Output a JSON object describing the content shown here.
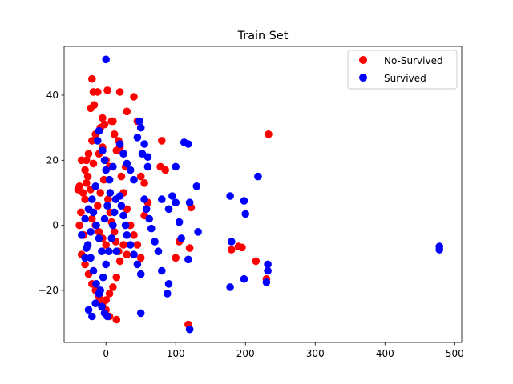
{
  "chart_data": {
    "type": "scatter",
    "title": "Train Set",
    "xlabel": "",
    "ylabel": "",
    "xlim": [
      -60,
      510
    ],
    "ylim": [
      -36,
      55
    ],
    "xticks": [
      0,
      100,
      200,
      300,
      400,
      500
    ],
    "yticks": [
      -20,
      0,
      20,
      40
    ],
    "grid": false,
    "legend_placement": "top-right",
    "series": [
      {
        "name": "No-Survived",
        "color": "#ff0000",
        "points": [
          [
            -20,
            45
          ],
          [
            -18,
            41
          ],
          [
            -17,
            37
          ],
          [
            -22,
            36
          ],
          [
            -12,
            41
          ],
          [
            -5,
            33
          ],
          [
            2,
            41.5
          ],
          [
            8,
            32
          ],
          [
            -8,
            30
          ],
          [
            -2,
            31
          ],
          [
            -15,
            28
          ],
          [
            -20,
            26
          ],
          [
            -25,
            22
          ],
          [
            -28,
            20
          ],
          [
            -30,
            17
          ],
          [
            -18,
            19
          ],
          [
            -10,
            22
          ],
          [
            -5,
            24
          ],
          [
            0,
            20
          ],
          [
            5,
            18
          ],
          [
            -35,
            20
          ],
          [
            -38,
            12
          ],
          [
            -33,
            10
          ],
          [
            -30,
            8
          ],
          [
            -25,
            5
          ],
          [
            -20,
            2
          ],
          [
            -15,
            0
          ],
          [
            -10,
            -2
          ],
          [
            -5,
            -4
          ],
          [
            0,
            -6
          ],
          [
            -35,
            -9
          ],
          [
            -30,
            -12
          ],
          [
            -25,
            -15
          ],
          [
            -20,
            -18
          ],
          [
            -15,
            -20
          ],
          [
            -10,
            -22
          ],
          [
            -5,
            -24
          ],
          [
            0,
            -26
          ],
          [
            5,
            -28
          ],
          [
            15,
            -29
          ],
          [
            10,
            32
          ],
          [
            18,
            26
          ],
          [
            20,
            24
          ],
          [
            25,
            22
          ],
          [
            28,
            18
          ],
          [
            30,
            35
          ],
          [
            40,
            39.5
          ],
          [
            45,
            32
          ],
          [
            50,
            15
          ],
          [
            55,
            13
          ],
          [
            20,
            41
          ],
          [
            12,
            28
          ],
          [
            15,
            23
          ],
          [
            22,
            15
          ],
          [
            25,
            10
          ],
          [
            30,
            5
          ],
          [
            35,
            0
          ],
          [
            40,
            -3
          ],
          [
            45,
            -6
          ],
          [
            50,
            -10
          ],
          [
            20,
            -11
          ],
          [
            15,
            -16
          ],
          [
            10,
            -19
          ],
          [
            5,
            -21
          ],
          [
            0,
            -23
          ],
          [
            -5,
            -25
          ],
          [
            25,
            -6
          ],
          [
            30,
            -9
          ],
          [
            55,
            3
          ],
          [
            60,
            7
          ],
          [
            78,
            18
          ],
          [
            80,
            26
          ],
          [
            85,
            17
          ],
          [
            100,
            -10
          ],
          [
            105,
            -5
          ],
          [
            120,
            -7
          ],
          [
            122,
            5.5
          ],
          [
            118,
            -30.5
          ],
          [
            180,
            -7.5
          ],
          [
            190,
            -6.5
          ],
          [
            195,
            -6.8
          ],
          [
            215,
            -11
          ],
          [
            230,
            -16.5
          ],
          [
            233,
            28
          ],
          [
            -38,
            0
          ],
          [
            -36,
            4
          ],
          [
            -32,
            -3
          ],
          [
            -28,
            13
          ],
          [
            -26,
            15
          ],
          [
            -22,
            11
          ],
          [
            -12,
            6
          ],
          [
            -8,
            10
          ],
          [
            -3,
            14
          ],
          [
            3,
            8
          ],
          [
            6,
            4
          ],
          [
            8,
            1
          ],
          [
            12,
            -2
          ],
          [
            14,
            -5
          ],
          [
            18,
            -8
          ],
          [
            -40,
            11
          ]
        ]
      },
      {
        "name": "Survived",
        "color": "#0000ff",
        "points": [
          [
            0,
            51
          ],
          [
            -10,
            29
          ],
          [
            -12,
            26
          ],
          [
            -5,
            23
          ],
          [
            0,
            17
          ],
          [
            5,
            14
          ],
          [
            -15,
            12
          ],
          [
            -20,
            8
          ],
          [
            -25,
            5
          ],
          [
            -30,
            2
          ],
          [
            -35,
            -3
          ],
          [
            -28,
            -7
          ],
          [
            -22,
            -10
          ],
          [
            -18,
            -14
          ],
          [
            -14,
            -18
          ],
          [
            -10,
            -21
          ],
          [
            -6,
            -25
          ],
          [
            -2,
            -27
          ],
          [
            2,
            -28
          ],
          [
            -20,
            -28
          ],
          [
            -25,
            -26
          ],
          [
            -15,
            -24
          ],
          [
            -8,
            -20
          ],
          [
            -4,
            -16
          ],
          [
            0,
            -12
          ],
          [
            4,
            -8
          ],
          [
            8,
            -4
          ],
          [
            10,
            0
          ],
          [
            12,
            4
          ],
          [
            14,
            8
          ],
          [
            -18,
            4
          ],
          [
            -14,
            0
          ],
          [
            -10,
            -4
          ],
          [
            -6,
            -8
          ],
          [
            -2,
            2
          ],
          [
            2,
            6
          ],
          [
            6,
            10
          ],
          [
            -22,
            -2
          ],
          [
            -26,
            -6
          ],
          [
            -30,
            -10
          ],
          [
            20,
            25
          ],
          [
            25,
            22
          ],
          [
            30,
            19
          ],
          [
            35,
            17
          ],
          [
            40,
            14
          ],
          [
            45,
            27
          ],
          [
            48,
            32
          ],
          [
            50,
            30
          ],
          [
            52,
            22
          ],
          [
            55,
            25
          ],
          [
            20,
            9
          ],
          [
            22,
            6
          ],
          [
            25,
            3
          ],
          [
            28,
            0
          ],
          [
            30,
            -3
          ],
          [
            35,
            -6
          ],
          [
            40,
            -9
          ],
          [
            45,
            -12
          ],
          [
            50,
            -15
          ],
          [
            50,
            -27
          ],
          [
            60,
            21
          ],
          [
            60,
            18
          ],
          [
            55,
            8
          ],
          [
            58,
            5
          ],
          [
            62,
            2
          ],
          [
            65,
            -1
          ],
          [
            70,
            -5
          ],
          [
            75,
            -8
          ],
          [
            80,
            -14
          ],
          [
            80,
            8
          ],
          [
            90,
            5
          ],
          [
            95,
            9
          ],
          [
            100,
            18
          ],
          [
            100,
            7
          ],
          [
            105,
            1
          ],
          [
            108,
            -4
          ],
          [
            112,
            25.5
          ],
          [
            118,
            25
          ],
          [
            120,
            7
          ],
          [
            118,
            -10.5
          ],
          [
            130,
            12
          ],
          [
            132,
            -2
          ],
          [
            90,
            -18
          ],
          [
            88,
            -21
          ],
          [
            120,
            -32
          ],
          [
            178,
            9
          ],
          [
            180,
            -5
          ],
          [
            178,
            -19
          ],
          [
            198,
            7.5
          ],
          [
            200,
            3.5
          ],
          [
            198,
            -16.5
          ],
          [
            218,
            15
          ],
          [
            232,
            -12
          ],
          [
            230,
            -17.5
          ],
          [
            232,
            -14
          ],
          [
            478,
            -6.5
          ],
          [
            478,
            -7.5
          ],
          [
            -2,
            20
          ],
          [
            10,
            18
          ],
          [
            15,
            -8
          ]
        ]
      }
    ]
  }
}
